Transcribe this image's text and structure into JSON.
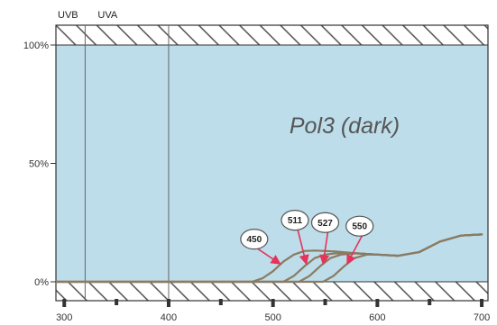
{
  "chart_data": {
    "type": "line",
    "title": "Pol3 (dark)",
    "xlabel": "",
    "ylabel": "",
    "xlim": [
      292,
      706
    ],
    "ylim": [
      0,
      100
    ],
    "x_ticks": [
      {
        "value": 300,
        "label": "300"
      },
      {
        "value": 400,
        "label": "400"
      },
      {
        "value": 500,
        "label": "500"
      },
      {
        "value": 600,
        "label": "600"
      },
      {
        "value": 700,
        "label": "700"
      }
    ],
    "x_minor_ticks": [
      350,
      450,
      550,
      650
    ],
    "y_ticks": [
      {
        "value": 0,
        "label": "0%"
      },
      {
        "value": 50,
        "label": "50%"
      },
      {
        "value": 100,
        "label": "100%"
      }
    ],
    "regions": [
      {
        "label": "UVB",
        "start": 292,
        "end": 320
      },
      {
        "label": "UVA",
        "start": 320,
        "end": 400
      }
    ],
    "grid": false,
    "legend": "none",
    "colors": {
      "background": "#bcdde9",
      "hatch": "#444444",
      "line": "#8a7b62",
      "arrow": "#e6335a",
      "divider": "#666666"
    },
    "series": [
      {
        "name": "450",
        "x": [
          292,
          480,
          490,
          500,
          510,
          520,
          530,
          540,
          560,
          580,
          600,
          620,
          640,
          660,
          680,
          700
        ],
        "y": [
          0,
          0,
          1.5,
          4.5,
          8.5,
          11.5,
          13,
          13.2,
          12.8,
          12,
          11.5,
          11,
          12.5,
          17,
          19.5,
          20
        ]
      },
      {
        "name": "511",
        "x": [
          292,
          510,
          520,
          530,
          540,
          550,
          560,
          580,
          600,
          620,
          640,
          660,
          680,
          700
        ],
        "y": [
          0,
          0,
          2.5,
          6.5,
          10,
          11.5,
          12,
          12,
          11.5,
          11,
          12.5,
          17,
          19.5,
          20
        ]
      },
      {
        "name": "527",
        "x": [
          292,
          525,
          535,
          545,
          555,
          565,
          580,
          600,
          620,
          640,
          660,
          680,
          700
        ],
        "y": [
          0,
          0,
          2.5,
          6.5,
          10,
          11.5,
          12,
          11.5,
          11,
          12.5,
          17,
          19.5,
          20
        ]
      },
      {
        "name": "550",
        "x": [
          292,
          548,
          558,
          568,
          578,
          590,
          600,
          620,
          640,
          660,
          680,
          700
        ],
        "y": [
          0,
          0,
          2.5,
          6.5,
          10,
          11.5,
          11.5,
          11,
          12.5,
          17,
          19.5,
          20
        ]
      }
    ],
    "annotations": [
      {
        "label": "450",
        "series": "450",
        "target_x": 507,
        "target_y": 7.5,
        "label_x": 482,
        "label_y": 18
      },
      {
        "label": "511",
        "series": "511",
        "target_x": 532,
        "target_y": 7.5,
        "label_x": 521,
        "label_y": 26
      },
      {
        "label": "527",
        "series": "527",
        "target_x": 548,
        "target_y": 7.5,
        "label_x": 550,
        "label_y": 25
      },
      {
        "label": "550",
        "series": "550",
        "target_x": 571,
        "target_y": 7.5,
        "label_x": 583,
        "label_y": 23.5
      }
    ]
  }
}
